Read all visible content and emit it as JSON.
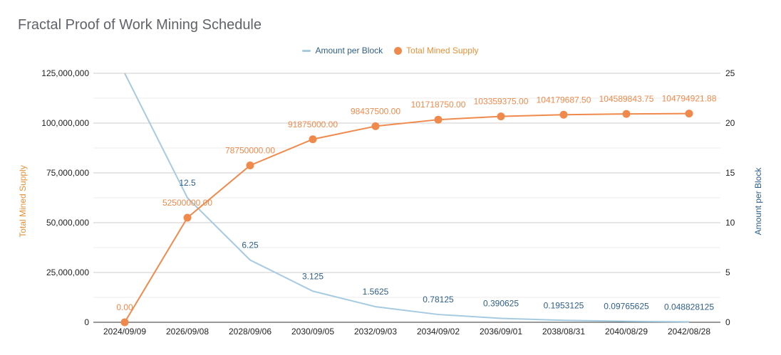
{
  "chart_data": {
    "type": "line",
    "title": "Fractal Proof of Work Mining Schedule",
    "categories": [
      "2024/09/09",
      "2026/09/08",
      "2028/09/06",
      "2030/09/05",
      "2032/09/03",
      "2034/09/02",
      "2036/09/01",
      "2038/08/31",
      "2040/08/29",
      "2042/08/28"
    ],
    "series": [
      {
        "name": "Amount per Block",
        "axis": "right",
        "color": "#a6cbe0",
        "label_color": "#2f5f8a",
        "values": [
          25,
          12.5,
          6.25,
          3.125,
          1.5625,
          0.78125,
          0.390625,
          0.1953125,
          0.09765625,
          0.048828125
        ],
        "labels": [
          "",
          "12.5",
          "6.25",
          "3.125",
          "1.5625",
          "0.78125",
          "0.390625",
          "0.1953125",
          "0.09765625",
          "0.048828125"
        ]
      },
      {
        "name": "Total Mined Supply",
        "axis": "left",
        "color": "#ef8a4c",
        "label_color": "#ef8a4c",
        "values": [
          0,
          52500000,
          78750000,
          91875000,
          98437500,
          101718750,
          103359375,
          104179687.5,
          104589843.75,
          104794921.88
        ],
        "labels": [
          "0.00",
          "52500000.00",
          "78750000.00",
          "91875000.00",
          "98437500.00",
          "101718750.00",
          "103359375.00",
          "104179687.50",
          "104589843.75",
          "104794921.88"
        ]
      }
    ],
    "left_axis": {
      "label": "Total Mined Supply",
      "min": 0,
      "max": 125000000,
      "ticks": [
        0,
        25000000,
        50000000,
        75000000,
        100000000,
        125000000
      ],
      "tick_labels": [
        "0",
        "25,000,000",
        "50,000,000",
        "75,000,000",
        "100,000,000",
        "125,000,000"
      ]
    },
    "right_axis": {
      "label": "Amount per Block",
      "min": 0,
      "max": 25,
      "ticks": [
        0,
        5,
        10,
        15,
        20,
        25
      ],
      "tick_labels": [
        "0",
        "5",
        "10",
        "15",
        "20",
        "25"
      ]
    },
    "grid": true,
    "legend_position": "top"
  }
}
